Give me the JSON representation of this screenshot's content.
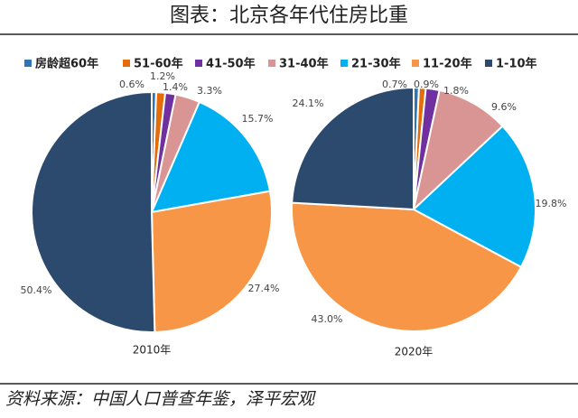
{
  "title": "图表：北京各年代住房比重",
  "source": "资料来源：中国人口普查年鉴，泽平宏观",
  "chart_data": {
    "type": "pie",
    "categories": [
      "房龄超60年",
      "51-60年",
      "41-50年",
      "31-40年",
      "21-30年",
      "11-20年",
      "1-10年"
    ],
    "colors": [
      "#2e75b6",
      "#e46c0a",
      "#7030a0",
      "#d99594",
      "#00b0f0",
      "#f79646",
      "#2c4a6e"
    ],
    "series": [
      {
        "name": "2010年",
        "values": [
          0.6,
          1.2,
          1.4,
          3.3,
          15.7,
          27.4,
          50.4
        ],
        "value_labels": [
          "0.6%",
          "1.2%",
          "1.4%",
          "3.3%",
          "15.7%",
          "27.4%",
          "50.4%"
        ]
      },
      {
        "name": "2020年",
        "values": [
          0.7,
          0.9,
          1.8,
          9.6,
          19.8,
          43.0,
          24.1
        ],
        "value_labels": [
          "0.7%",
          "0.9%",
          "1.8%",
          "9.6%",
          "19.8%",
          "43.0%",
          "24.1%"
        ]
      }
    ]
  }
}
